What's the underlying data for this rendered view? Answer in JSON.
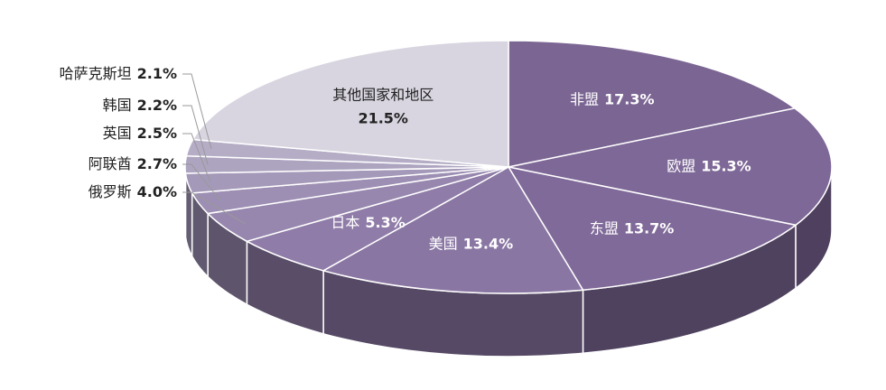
{
  "chart_data": {
    "type": "pie",
    "categories": [
      "非盟",
      "欧盟",
      "东盟",
      "美国",
      "日本",
      "俄罗斯",
      "阿联酋",
      "英国",
      "韩国",
      "哈萨克斯坦",
      "其他国家和地区"
    ],
    "values": [
      17.3,
      15.3,
      13.7,
      13.4,
      5.3,
      4.0,
      2.7,
      2.5,
      2.2,
      2.1,
      21.5
    ],
    "value_labels": [
      "17.3%",
      "15.3%",
      "13.7%",
      "13.4%",
      "5.3%",
      "4.0%",
      "2.7%",
      "2.5%",
      "2.2%",
      "2.1%",
      "21.5%"
    ],
    "colors": [
      "#7b6593",
      "#7e6897",
      "#806a99",
      "#8a76a3",
      "#8f7ca8",
      "#9787ae",
      "#9d8fb3",
      "#a499b9",
      "#ada4c0",
      "#b5adc6",
      "#d8d5e0"
    ]
  }
}
